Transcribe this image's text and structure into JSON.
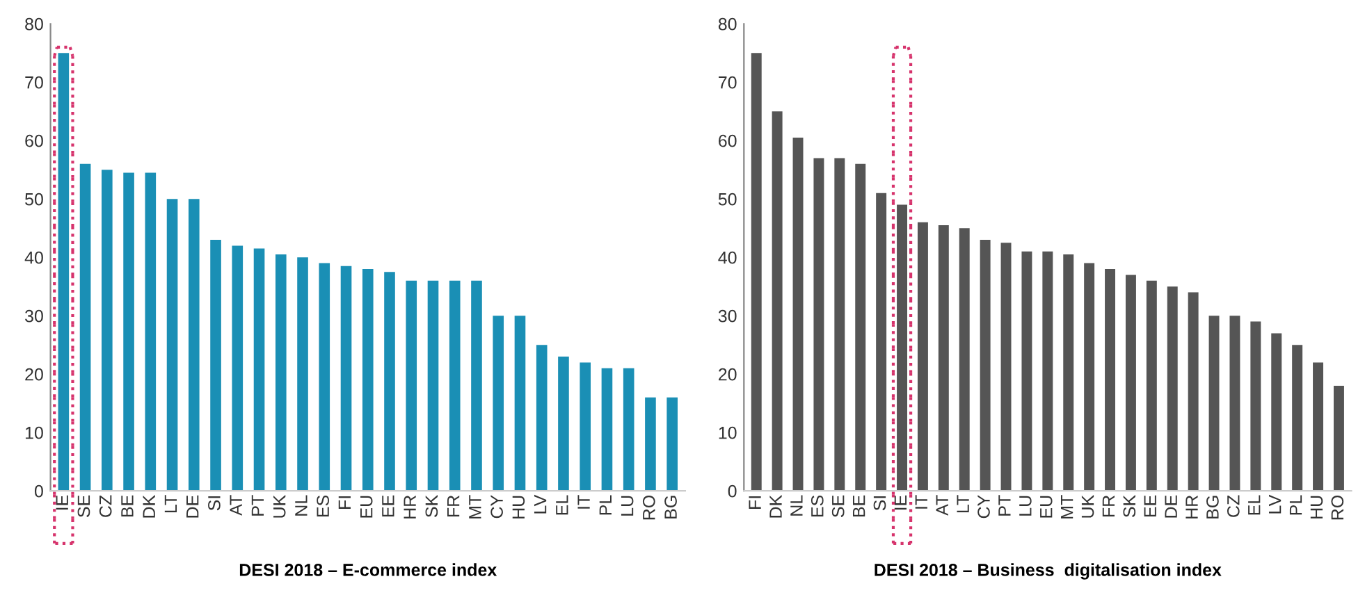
{
  "chart_data": [
    {
      "type": "bar",
      "xlabel": "DESI 2018 – E-commerce index",
      "categories": [
        "IE",
        "SE",
        "CZ",
        "BE",
        "DK",
        "LT",
        "DE",
        "SI",
        "AT",
        "PT",
        "UK",
        "NL",
        "ES",
        "FI",
        "EU",
        "EE",
        "HR",
        "SK",
        "FR",
        "MT",
        "CY",
        "HU",
        "LV",
        "EL",
        "IT",
        "PL",
        "LU",
        "RO",
        "BG"
      ],
      "values": [
        75,
        56,
        55,
        54.5,
        54.5,
        50,
        50,
        43,
        42,
        41.5,
        40.5,
        40,
        39,
        38.5,
        38,
        37.5,
        36,
        36,
        36,
        36,
        30,
        30,
        25,
        23,
        22,
        21,
        21,
        16,
        16
      ],
      "color": "#1a8fb5",
      "ylim": [
        0,
        80
      ],
      "yticks": [
        0,
        10,
        20,
        30,
        40,
        50,
        60,
        70,
        80
      ],
      "grid": false
    },
    {
      "type": "bar",
      "xlabel": "DESI 2018 – Business  digitalisation index",
      "categories": [
        "FI",
        "DK",
        "NL",
        "ES",
        "SE",
        "BE",
        "SI",
        "IE",
        "IT",
        "AT",
        "LT",
        "CY",
        "PT",
        "LU",
        "EU",
        "MT",
        "UK",
        "FR",
        "SK",
        "EE",
        "DE",
        "HR",
        "BG",
        "CZ",
        "EL",
        "LV",
        "PL",
        "HU",
        "RO"
      ],
      "values": [
        75,
        65,
        60.5,
        57,
        57,
        56,
        51,
        49,
        46,
        45.5,
        45,
        43,
        42.5,
        41,
        41,
        40.5,
        39,
        38,
        37,
        36,
        35,
        34,
        30,
        30,
        29,
        27,
        25,
        22,
        18
      ],
      "color": "#555555",
      "ylim": [
        0,
        80
      ],
      "yticks": [
        0,
        10,
        20,
        30,
        40,
        50,
        60,
        70,
        80
      ],
      "grid": false
    }
  ]
}
